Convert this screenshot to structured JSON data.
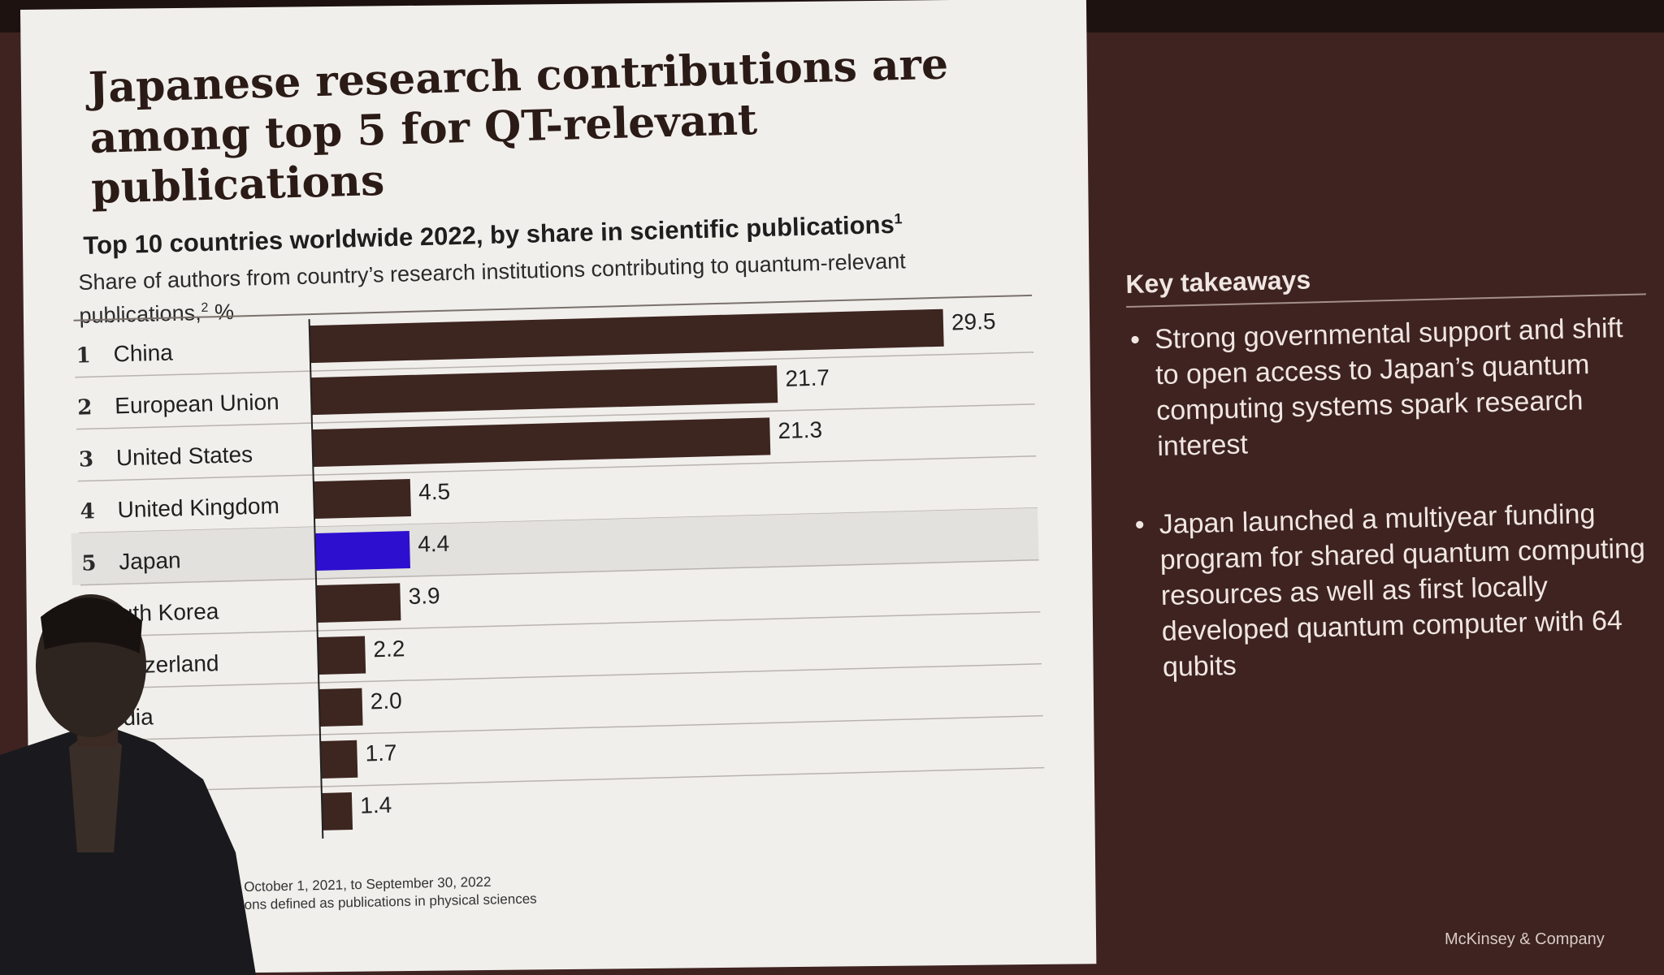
{
  "slide": {
    "headline": "Japanese research contributions are among top 5 for QT-relevant publications",
    "chart_title": "Top 10 countries worldwide 2022, by share in scientific publications",
    "chart_title_footnote": "1",
    "chart_subtitle": "Share of authors from country’s research institutions contributing to quantum-relevant publications,",
    "chart_subtitle_footnote": "2",
    "chart_subtitle_unit": " %",
    "footnote_1": "October 1, 2021, to September 30, 2022",
    "footnote_2": "ons defined as publications in physical sciences"
  },
  "takeaways": {
    "title": "Key takeaways",
    "bullet": "•",
    "items": [
      "Strong governmental support and shift to open access to Japan’s quantum computing systems spark research interest",
      "Japan launched a multiyear funding program for shared quantum computing resources as well as first locally developed quantum computer with 64 qubits"
    ]
  },
  "brand": "McKinsey & Company",
  "chart_data": {
    "type": "bar",
    "orientation": "horizontal",
    "ranks": [
      "1",
      "2",
      "3",
      "4",
      "5",
      "",
      "",
      "",
      "",
      ""
    ],
    "categories": [
      "China",
      "European Union",
      "United States",
      "United Kingdom",
      "Japan",
      "uth Korea",
      "vitzerland",
      "dia",
      "",
      ""
    ],
    "values": [
      29.5,
      21.7,
      21.3,
      4.5,
      4.4,
      3.9,
      2.2,
      2.0,
      1.7,
      1.4
    ],
    "value_labels": [
      "29.5",
      "21.7",
      "21.3",
      "4.5",
      "4.4",
      "3.9",
      "2.2",
      "2.0",
      "1.7",
      "1.4"
    ],
    "highlight_category": "Japan",
    "xlim": [
      0,
      29.5
    ],
    "colors": {
      "bar": "#3d2520",
      "highlight": "#2d0fd0",
      "highlight_row_bg": "#e2e1dd",
      "divider": "#b8b3ae"
    }
  }
}
